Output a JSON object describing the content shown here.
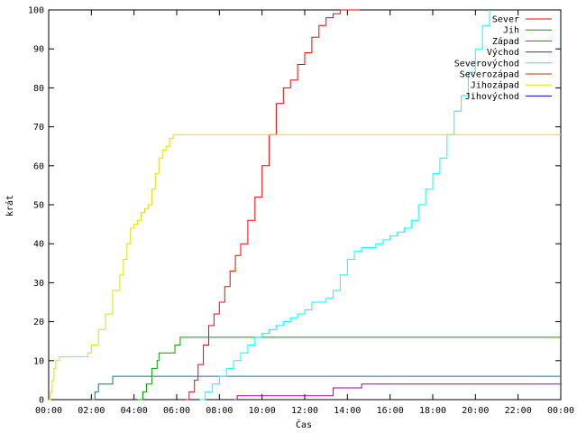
{
  "chart_data": {
    "type": "line",
    "title": "",
    "xlabel": "Čas",
    "ylabel": "krát",
    "xlim": [
      0,
      1440
    ],
    "ylim": [
      0,
      100
    ],
    "x_tick_labels": [
      "00:00",
      "02:00",
      "04:00",
      "06:00",
      "08:00",
      "10:00",
      "12:00",
      "14:00",
      "16:00",
      "18:00",
      "20:00",
      "22:00",
      "00:00"
    ],
    "y_tick_labels": [
      "0",
      "10",
      "20",
      "30",
      "40",
      "50",
      "60",
      "70",
      "80",
      "90",
      "100"
    ],
    "legend_position": "top-right",
    "grid": false,
    "series": [
      {
        "name": "Sever",
        "color": "#ff0000",
        "x": [
          385,
          395,
          410,
          420,
          435,
          450,
          465,
          480,
          495,
          510,
          525,
          540,
          560,
          580,
          600,
          620,
          640,
          660,
          680,
          700,
          720,
          740,
          760,
          780,
          800,
          820,
          840,
          860,
          875
        ],
        "y": [
          0,
          2,
          5,
          9,
          14,
          19,
          22,
          25,
          29,
          33,
          37,
          40,
          46,
          52,
          60,
          68,
          76,
          80,
          82,
          86,
          89,
          93,
          96,
          98,
          99,
          100,
          100,
          100,
          100
        ]
      },
      {
        "name": "Jih",
        "color": "#00a000",
        "x": [
          250,
          265,
          275,
          290,
          305,
          310,
          320,
          335,
          345,
          355,
          370,
          390,
          1440
        ],
        "y": [
          0,
          2,
          4,
          8,
          10,
          12,
          12,
          12,
          12,
          14,
          16,
          16,
          16
        ]
      },
      {
        "name": "Západ",
        "color": "#008080",
        "x": [
          120,
          130,
          140,
          160,
          170,
          180,
          190,
          200,
          1440
        ],
        "y": [
          0,
          2,
          4,
          4,
          4,
          6,
          6,
          6,
          6
        ]
      },
      {
        "name": "Východ",
        "color": "#a000a0",
        "x": [
          520,
          530,
          560,
          620,
          680,
          700,
          720,
          760,
          800,
          830,
          880,
          940,
          1440
        ],
        "y": [
          0,
          1,
          1,
          1,
          1,
          1,
          1,
          1,
          3,
          3,
          4,
          4,
          4
        ]
      },
      {
        "name": "Severovýchod",
        "color": "#00ffff",
        "x": [
          425,
          440,
          460,
          480,
          500,
          520,
          540,
          560,
          580,
          600,
          620,
          640,
          660,
          680,
          700,
          720,
          740,
          760,
          780,
          800,
          820,
          840,
          860,
          880,
          900,
          920,
          940,
          960,
          980,
          1000,
          1020,
          1040,
          1060,
          1080,
          1100,
          1120,
          1140,
          1160,
          1180,
          1200,
          1220,
          1240
        ],
        "y": [
          0,
          2,
          4,
          6,
          8,
          10,
          12,
          14,
          16,
          17,
          18,
          19,
          20,
          21,
          22,
          23,
          25,
          25,
          26,
          28,
          32,
          36,
          38,
          39,
          39,
          40,
          41,
          42,
          43,
          44,
          46,
          50,
          54,
          58,
          62,
          68,
          74,
          78,
          84,
          90,
          96,
          100
        ]
      },
      {
        "name": "Severozápad",
        "color": "#b04000",
        "x": [],
        "y": []
      },
      {
        "name": "Jihozápad",
        "color": "#e0e000",
        "x": [
          0,
          5,
          10,
          15,
          20,
          30,
          60,
          90,
          100,
          110,
          120,
          140,
          160,
          180,
          200,
          210,
          220,
          230,
          240,
          250,
          260,
          270,
          280,
          290,
          300,
          310,
          320,
          330,
          340,
          350,
          360,
          1440
        ],
        "y": [
          0,
          2,
          5,
          8,
          10,
          11,
          11,
          11,
          11,
          12,
          14,
          18,
          22,
          28,
          32,
          36,
          40,
          44,
          45,
          46,
          48,
          49,
          50,
          54,
          58,
          62,
          64,
          65,
          67,
          68,
          68,
          68
        ]
      },
      {
        "name": "Jihovýchod",
        "color": "#0000c0",
        "x": [],
        "y": []
      }
    ]
  }
}
